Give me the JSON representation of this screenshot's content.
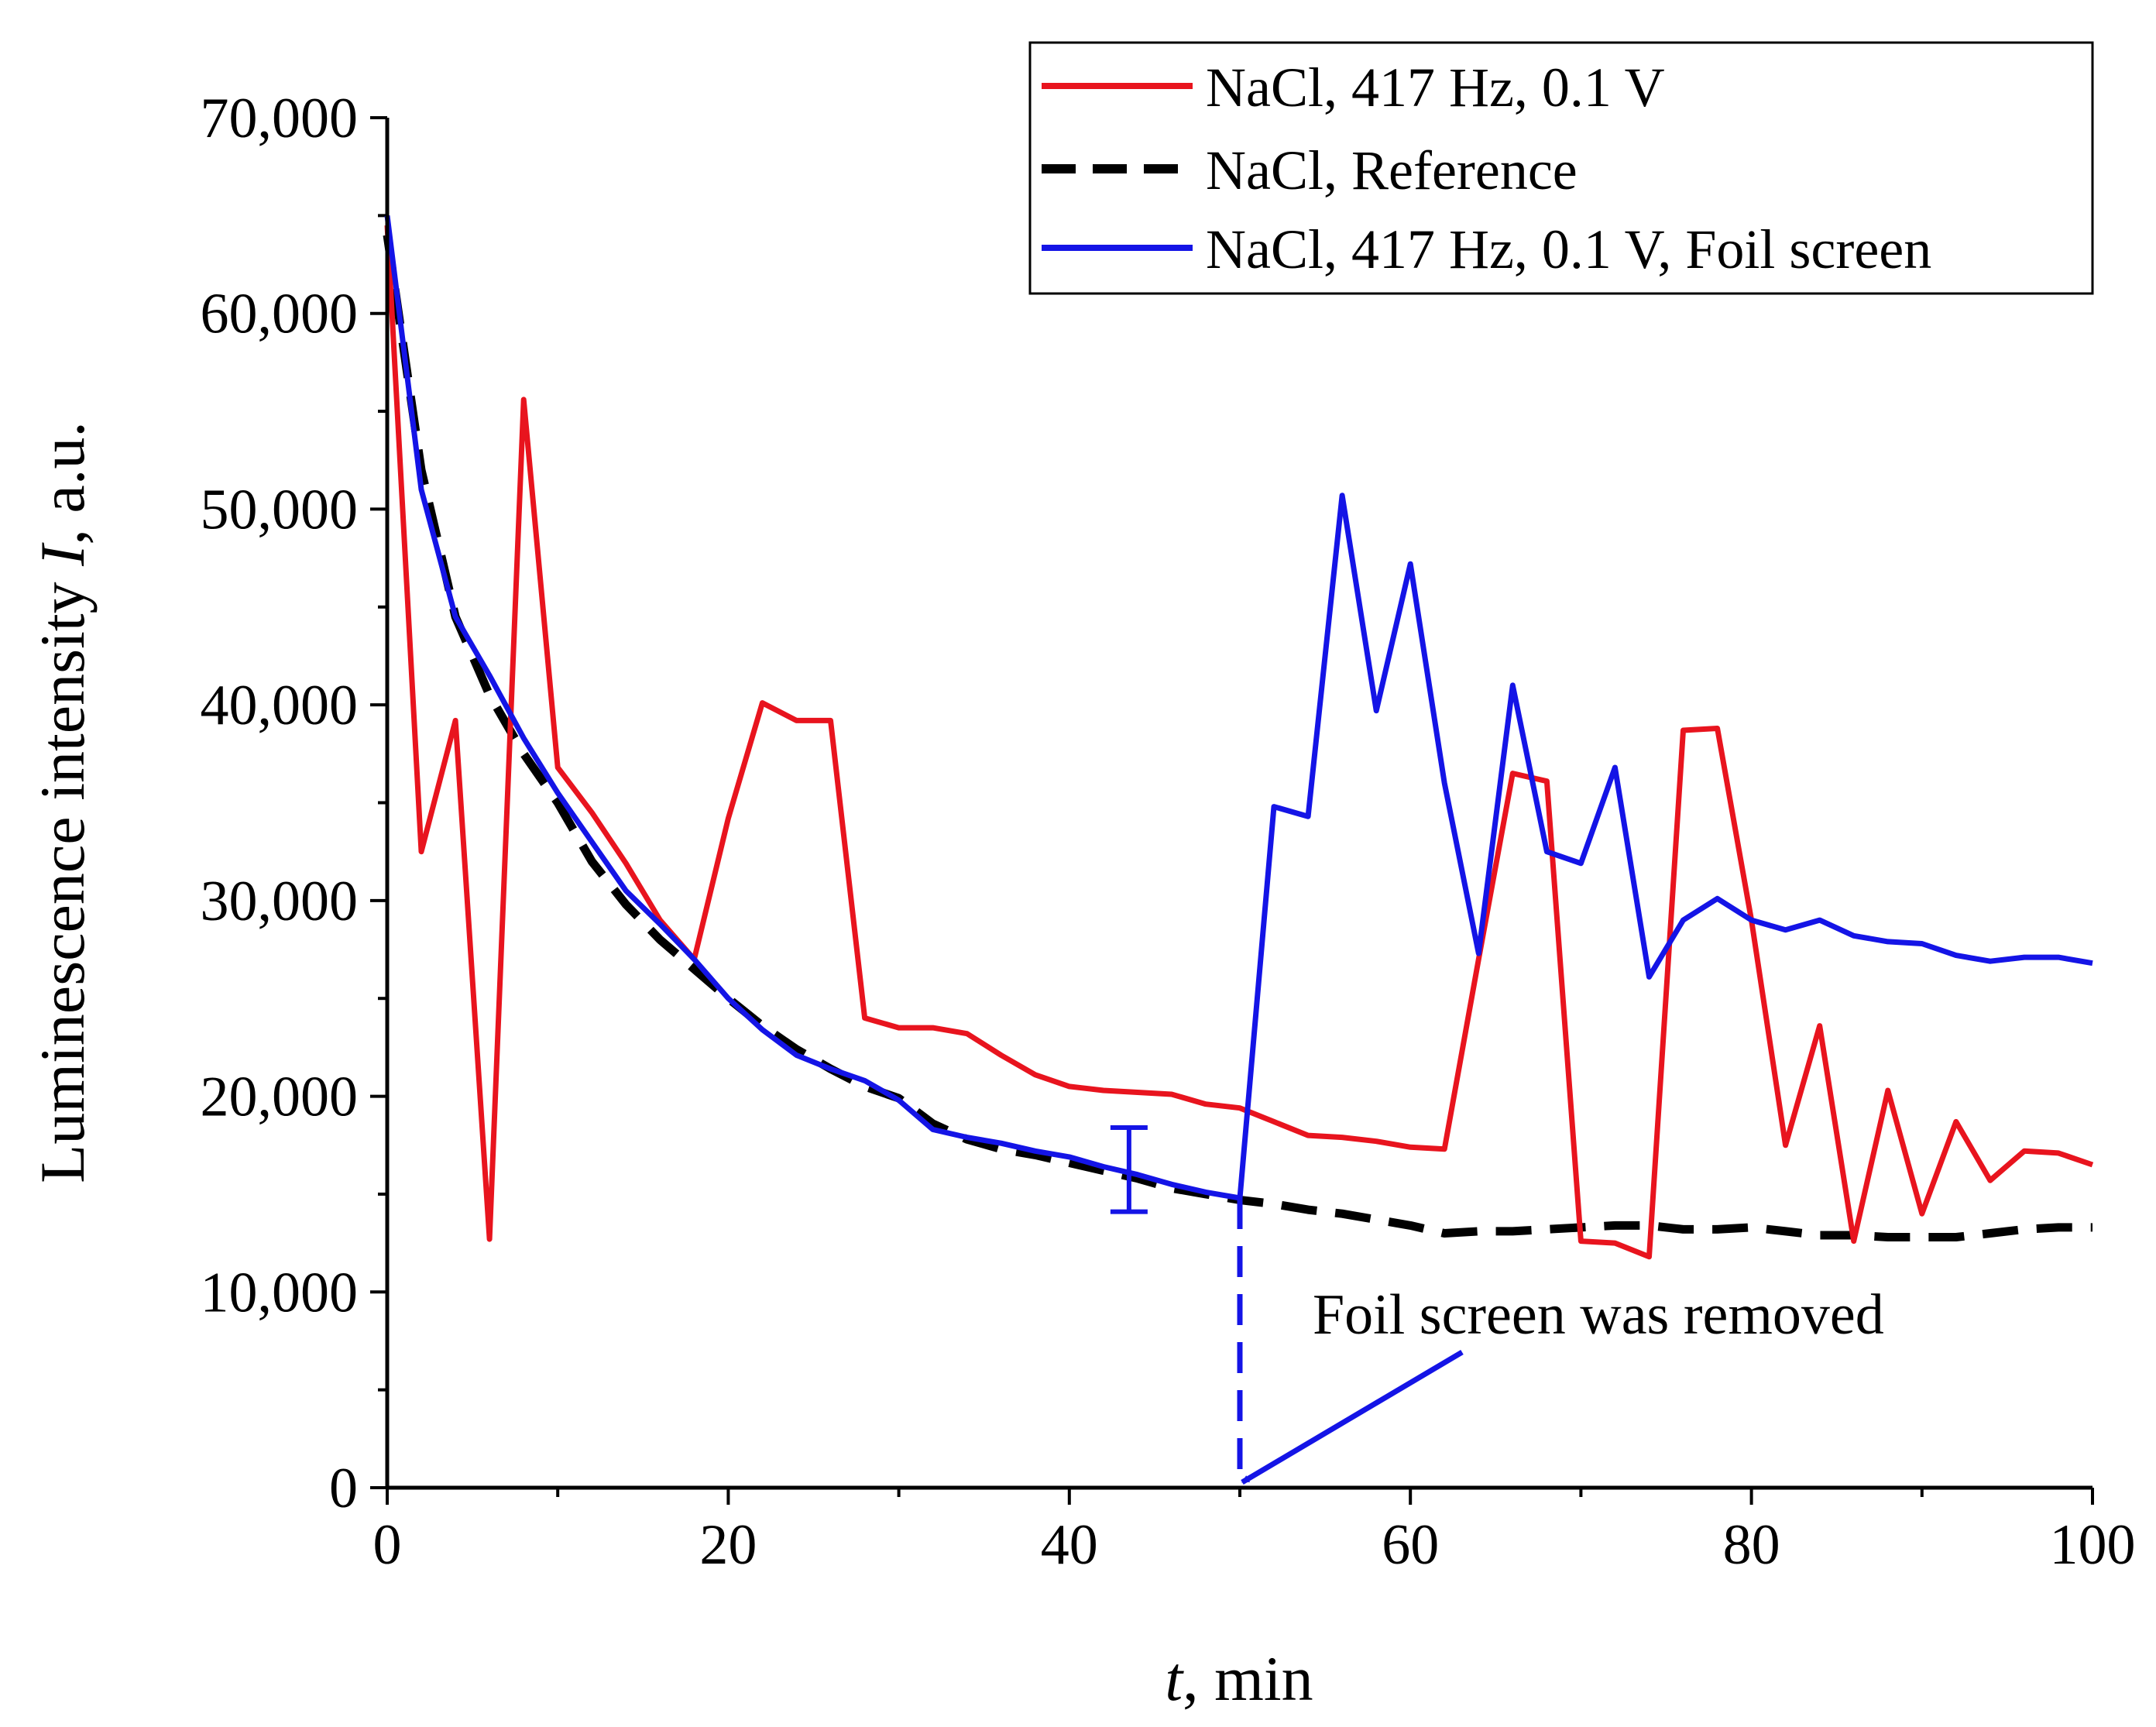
{
  "chart_data": {
    "type": "line",
    "title": "",
    "xlabel": {
      "italic": "t",
      "rest": ", min"
    },
    "ylabel": {
      "prefix": "Luminescence intensity ",
      "italic": "I",
      "suffix": ", a.u."
    },
    "xlim": [
      0,
      100
    ],
    "ylim": [
      0,
      70000
    ],
    "x_ticks": [
      0,
      20,
      40,
      60,
      80,
      100
    ],
    "x_tick_labels": [
      "0",
      "20",
      "40",
      "60",
      "80",
      "100"
    ],
    "y_ticks": [
      0,
      10000,
      20000,
      30000,
      40000,
      50000,
      60000,
      70000
    ],
    "y_tick_labels": [
      "0",
      "10,000",
      "20,000",
      "30,000",
      "40,000",
      "50,000",
      "60,000",
      "70,000"
    ],
    "grid": false,
    "legend_position": "top-right",
    "series": [
      {
        "name": "NaCl, 417 Hz, 0.1 V",
        "color": "#e8141e",
        "style": "solid",
        "x": [
          0,
          2,
          4,
          6,
          8,
          10,
          12,
          14,
          16,
          18,
          20,
          22,
          24,
          26,
          28,
          30,
          32,
          34,
          36,
          38,
          40,
          42,
          44,
          46,
          48,
          50,
          52,
          54,
          56,
          58,
          60,
          62,
          64,
          66,
          68,
          70,
          72,
          74,
          76,
          78,
          80,
          82,
          84,
          86,
          88,
          90,
          92,
          94,
          96,
          98,
          100
        ],
        "y": [
          64500,
          32500,
          39200,
          12700,
          55600,
          36800,
          34500,
          31900,
          29000,
          27000,
          34200,
          40100,
          39200,
          39200,
          24000,
          23500,
          23500,
          23200,
          22100,
          21100,
          20500,
          20300,
          20200,
          20100,
          19600,
          19400,
          18700,
          18000,
          17900,
          17700,
          17400,
          17300,
          27000,
          36500,
          36100,
          12600,
          12500,
          11800,
          38700,
          38800,
          29000,
          17500,
          23600,
          12600,
          20300,
          14000,
          18700,
          15700,
          17200,
          17100,
          16500
        ]
      },
      {
        "name": "NaCl, Reference",
        "color": "#000000",
        "style": "dashed",
        "x": [
          0,
          2,
          4,
          6,
          8,
          10,
          12,
          14,
          16,
          18,
          20,
          22,
          24,
          26,
          28,
          30,
          32,
          34,
          36,
          38,
          40,
          42,
          44,
          46,
          48,
          50,
          52,
          54,
          56,
          58,
          60,
          62,
          64,
          66,
          68,
          70,
          72,
          74,
          76,
          78,
          80,
          82,
          84,
          86,
          88,
          90,
          92,
          94,
          96,
          98,
          100
        ],
        "y": [
          64000,
          52000,
          44500,
          40500,
          37500,
          35000,
          32000,
          29800,
          28000,
          26500,
          25000,
          23600,
          22400,
          21400,
          20500,
          19900,
          18600,
          17800,
          17300,
          17000,
          16600,
          16200,
          15800,
          15300,
          15000,
          14700,
          14500,
          14200,
          14000,
          13700,
          13400,
          13000,
          13100,
          13100,
          13200,
          13300,
          13400,
          13400,
          13200,
          13200,
          13300,
          13100,
          12900,
          12900,
          12800,
          12800,
          12800,
          13000,
          13200,
          13300,
          13300
        ]
      },
      {
        "name": "NaCl, 417 Hz, 0.1 V, Foil screen",
        "color": "#1414e6",
        "style": "solid",
        "x": [
          0,
          2,
          4,
          6,
          8,
          10,
          12,
          14,
          16,
          18,
          20,
          22,
          24,
          26,
          28,
          30,
          32,
          34,
          36,
          38,
          40,
          42,
          44,
          46,
          48,
          50,
          52,
          54,
          56,
          58,
          60,
          62,
          64,
          66,
          68,
          70,
          72,
          74,
          76,
          78,
          80,
          82,
          84,
          86,
          88,
          90,
          92,
          94,
          96,
          98,
          100
        ],
        "y": [
          65000,
          51000,
          44500,
          41500,
          38300,
          35500,
          33000,
          30500,
          28800,
          27000,
          25000,
          23400,
          22100,
          21400,
          20800,
          19800,
          18300,
          17900,
          17600,
          17200,
          16900,
          16400,
          16000,
          15500,
          15100,
          14800,
          34800,
          34300,
          50700,
          39700,
          47200,
          36000,
          27300,
          41000,
          32500,
          31900,
          36800,
          26100,
          29000,
          30100,
          29000,
          28500,
          29000,
          28200,
          27900,
          27800,
          27200,
          26900,
          27100,
          27100,
          26800
        ]
      }
    ],
    "error_bar": {
      "x": 43.5,
      "y": 16200,
      "low": 14100,
      "high": 18400,
      "color": "#1414e6"
    },
    "annotations": {
      "foil_removed_text": "Foil screen was removed",
      "arrow_target": [
        50,
        0
      ],
      "marker_line_x": 50,
      "marker_line_y_top": 14800
    }
  }
}
